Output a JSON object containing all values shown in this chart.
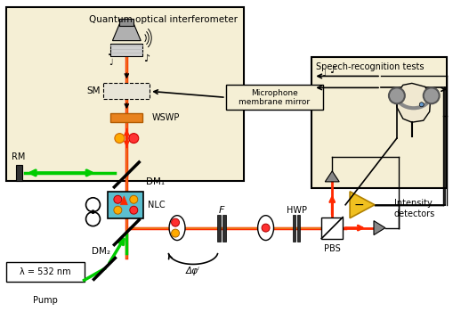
{
  "bg_color": "#f5efd5",
  "white": "#ffffff",
  "black": "#000000",
  "red": "#ff2800",
  "green": "#00cc00",
  "orange": "#e8821e",
  "teal": "#5bbecf",
  "yellow": "#f0c020",
  "gray": "#888888",
  "darkgray": "#333333",
  "title": "Quantum optical interferometer",
  "mic_label": "Microphone\nmembrane mirror",
  "speech_label": "Speech-recognition tests",
  "pump_label": "Pump",
  "lambda_label": "λ = 532 nm",
  "SM_label": "SM",
  "WSWP_label": "WSWP",
  "RM_label": "RM",
  "DM1_label": "DM₁",
  "DM2_label": "DM₂",
  "NLC_label": "NLC",
  "F_label": "F",
  "HWP_label": "HWP",
  "PBS_label": "PBS",
  "phi_label": "Δφⁱ",
  "intensity_label": "Intensity\ndetectors"
}
